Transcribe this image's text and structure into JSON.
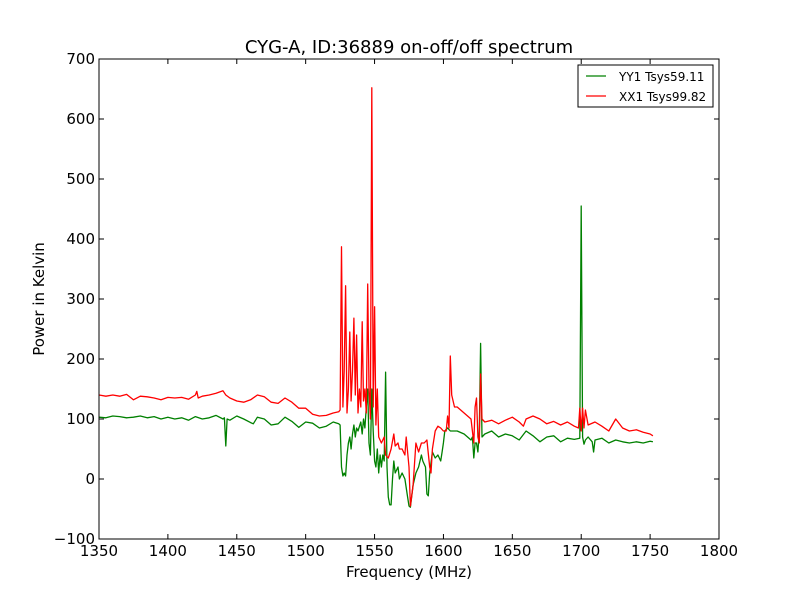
{
  "chart_data": {
    "type": "line",
    "title": "CYG-A, ID:36889 on-off/off spectrum",
    "xlabel": "Frequency (MHz)",
    "ylabel": "Power in Kelvin",
    "xlim": [
      1350,
      1800
    ],
    "ylim": [
      -100,
      700
    ],
    "xticks": [
      1350,
      1400,
      1450,
      1500,
      1550,
      1600,
      1650,
      1700,
      1750,
      1800
    ],
    "yticks": [
      -100,
      0,
      100,
      200,
      300,
      400,
      500,
      600,
      700
    ],
    "xtick_labels": [
      "1350",
      "1400",
      "1450",
      "1500",
      "1550",
      "1600",
      "1650",
      "1700",
      "1750",
      "1800"
    ],
    "ytick_labels": [
      "−100",
      "0",
      "100",
      "200",
      "300",
      "400",
      "500",
      "600",
      "700"
    ],
    "grid": false,
    "legend_position": "top-right",
    "series": [
      {
        "name": "YY1 Tsys59.11",
        "color": "#008000",
        "points": [
          [
            1350,
            103
          ],
          [
            1355,
            102
          ],
          [
            1360,
            105
          ],
          [
            1365,
            104
          ],
          [
            1370,
            102
          ],
          [
            1375,
            103
          ],
          [
            1380,
            105
          ],
          [
            1385,
            102
          ],
          [
            1390,
            104
          ],
          [
            1395,
            100
          ],
          [
            1400,
            103
          ],
          [
            1405,
            100
          ],
          [
            1410,
            102
          ],
          [
            1415,
            98
          ],
          [
            1420,
            104
          ],
          [
            1425,
            100
          ],
          [
            1430,
            102
          ],
          [
            1435,
            106
          ],
          [
            1440,
            100
          ],
          [
            1441,
            102
          ],
          [
            1442,
            55
          ],
          [
            1443,
            100
          ],
          [
            1445,
            98
          ],
          [
            1450,
            105
          ],
          [
            1455,
            100
          ],
          [
            1460,
            94
          ],
          [
            1462,
            92
          ],
          [
            1465,
            103
          ],
          [
            1470,
            100
          ],
          [
            1475,
            90
          ],
          [
            1480,
            92
          ],
          [
            1485,
            103
          ],
          [
            1490,
            96
          ],
          [
            1495,
            86
          ],
          [
            1500,
            95
          ],
          [
            1505,
            93
          ],
          [
            1510,
            85
          ],
          [
            1515,
            88
          ],
          [
            1520,
            95
          ],
          [
            1524,
            92
          ],
          [
            1525,
            90
          ],
          [
            1526,
            20
          ],
          [
            1527,
            5
          ],
          [
            1528,
            10
          ],
          [
            1529,
            5
          ],
          [
            1530,
            40
          ],
          [
            1531,
            60
          ],
          [
            1532,
            70
          ],
          [
            1533,
            50
          ],
          [
            1534,
            75
          ],
          [
            1535,
            90
          ],
          [
            1536,
            70
          ],
          [
            1537,
            85
          ],
          [
            1538,
            80
          ],
          [
            1540,
            95
          ],
          [
            1541,
            75
          ],
          [
            1542,
            100
          ],
          [
            1543,
            85
          ],
          [
            1544,
            120
          ],
          [
            1545,
            150
          ],
          [
            1546,
            60
          ],
          [
            1547,
            40
          ],
          [
            1548,
            150
          ],
          [
            1549,
            80
          ],
          [
            1550,
            30
          ],
          [
            1551,
            20
          ],
          [
            1552,
            50
          ],
          [
            1553,
            10
          ],
          [
            1554,
            40
          ],
          [
            1555,
            20
          ],
          [
            1556,
            40
          ],
          [
            1557,
            30
          ],
          [
            1558,
            178
          ],
          [
            1559,
            20
          ],
          [
            1560,
            -30
          ],
          [
            1561,
            -43
          ],
          [
            1562,
            -43
          ],
          [
            1563,
            0
          ],
          [
            1564,
            30
          ],
          [
            1565,
            10
          ],
          [
            1567,
            20
          ],
          [
            1568,
            0
          ],
          [
            1570,
            10
          ],
          [
            1572,
            0
          ],
          [
            1574,
            -30
          ],
          [
            1575,
            -45
          ],
          [
            1576,
            -47
          ],
          [
            1578,
            -10
          ],
          [
            1580,
            10
          ],
          [
            1582,
            20
          ],
          [
            1584,
            40
          ],
          [
            1585,
            30
          ],
          [
            1587,
            20
          ],
          [
            1588,
            -25
          ],
          [
            1589,
            -28
          ],
          [
            1590,
            10
          ],
          [
            1592,
            45
          ],
          [
            1594,
            35
          ],
          [
            1596,
            40
          ],
          [
            1598,
            30
          ],
          [
            1599,
            45
          ],
          [
            1600,
            60
          ],
          [
            1601,
            80
          ],
          [
            1603,
            85
          ],
          [
            1605,
            80
          ],
          [
            1610,
            80
          ],
          [
            1615,
            75
          ],
          [
            1620,
            65
          ],
          [
            1621,
            70
          ],
          [
            1622,
            35
          ],
          [
            1623,
            60
          ],
          [
            1624,
            60
          ],
          [
            1625,
            45
          ],
          [
            1626,
            80
          ],
          [
            1627,
            226
          ],
          [
            1628,
            70
          ],
          [
            1630,
            75
          ],
          [
            1635,
            80
          ],
          [
            1640,
            70
          ],
          [
            1645,
            75
          ],
          [
            1650,
            72
          ],
          [
            1655,
            65
          ],
          [
            1660,
            80
          ],
          [
            1665,
            72
          ],
          [
            1670,
            62
          ],
          [
            1675,
            70
          ],
          [
            1680,
            72
          ],
          [
            1685,
            62
          ],
          [
            1690,
            68
          ],
          [
            1695,
            66
          ],
          [
            1699,
            68
          ],
          [
            1700,
            455
          ],
          [
            1701,
            70
          ],
          [
            1702,
            58
          ],
          [
            1703,
            65
          ],
          [
            1705,
            70
          ],
          [
            1708,
            62
          ],
          [
            1709,
            45
          ],
          [
            1710,
            65
          ],
          [
            1715,
            68
          ],
          [
            1720,
            60
          ],
          [
            1725,
            65
          ],
          [
            1730,
            62
          ],
          [
            1735,
            60
          ],
          [
            1740,
            62
          ],
          [
            1745,
            60
          ],
          [
            1750,
            63
          ],
          [
            1752,
            62
          ]
        ]
      },
      {
        "name": "XX1 Tsys99.82",
        "color": "#ff0000",
        "points": [
          [
            1350,
            140
          ],
          [
            1355,
            138
          ],
          [
            1360,
            140
          ],
          [
            1365,
            138
          ],
          [
            1370,
            141
          ],
          [
            1375,
            132
          ],
          [
            1380,
            138
          ],
          [
            1385,
            137
          ],
          [
            1390,
            135
          ],
          [
            1395,
            132
          ],
          [
            1400,
            136
          ],
          [
            1405,
            135
          ],
          [
            1410,
            136
          ],
          [
            1415,
            133
          ],
          [
            1420,
            140
          ],
          [
            1421,
            146
          ],
          [
            1422,
            135
          ],
          [
            1425,
            138
          ],
          [
            1430,
            140
          ],
          [
            1435,
            143
          ],
          [
            1440,
            147
          ],
          [
            1442,
            140
          ],
          [
            1445,
            135
          ],
          [
            1450,
            130
          ],
          [
            1455,
            128
          ],
          [
            1460,
            132
          ],
          [
            1465,
            140
          ],
          [
            1470,
            137
          ],
          [
            1475,
            128
          ],
          [
            1480,
            126
          ],
          [
            1485,
            135
          ],
          [
            1490,
            128
          ],
          [
            1495,
            118
          ],
          [
            1500,
            118
          ],
          [
            1505,
            108
          ],
          [
            1510,
            105
          ],
          [
            1515,
            106
          ],
          [
            1520,
            110
          ],
          [
            1524,
            112
          ],
          [
            1525,
            115
          ],
          [
            1526,
            387
          ],
          [
            1527,
            120
          ],
          [
            1528,
            180
          ],
          [
            1529,
            322
          ],
          [
            1530,
            110
          ],
          [
            1531,
            150
          ],
          [
            1532,
            245
          ],
          [
            1533,
            130
          ],
          [
            1534,
            180
          ],
          [
            1535,
            268
          ],
          [
            1536,
            140
          ],
          [
            1537,
            240
          ],
          [
            1538,
            110
          ],
          [
            1539,
            150
          ],
          [
            1540,
            120
          ],
          [
            1541,
            262
          ],
          [
            1542,
            130
          ],
          [
            1543,
            150
          ],
          [
            1544,
            110
          ],
          [
            1545,
            325
          ],
          [
            1546,
            150
          ],
          [
            1547,
            100
          ],
          [
            1548,
            652
          ],
          [
            1549,
            120
          ],
          [
            1550,
            287
          ],
          [
            1551,
            90
          ],
          [
            1552,
            150
          ],
          [
            1553,
            70
          ],
          [
            1555,
            60
          ],
          [
            1557,
            70
          ],
          [
            1558,
            40
          ],
          [
            1560,
            35
          ],
          [
            1562,
            50
          ],
          [
            1564,
            75
          ],
          [
            1565,
            55
          ],
          [
            1567,
            60
          ],
          [
            1568,
            50
          ],
          [
            1570,
            50
          ],
          [
            1572,
            40
          ],
          [
            1573,
            70
          ],
          [
            1575,
            20
          ],
          [
            1576,
            -45
          ],
          [
            1578,
            -10
          ],
          [
            1580,
            60
          ],
          [
            1582,
            45
          ],
          [
            1584,
            60
          ],
          [
            1586,
            60
          ],
          [
            1588,
            65
          ],
          [
            1590,
            20
          ],
          [
            1591,
            10
          ],
          [
            1592,
            50
          ],
          [
            1594,
            80
          ],
          [
            1596,
            88
          ],
          [
            1598,
            85
          ],
          [
            1600,
            80
          ],
          [
            1602,
            80
          ],
          [
            1603,
            105
          ],
          [
            1604,
            85
          ],
          [
            1605,
            205
          ],
          [
            1606,
            140
          ],
          [
            1608,
            120
          ],
          [
            1610,
            120
          ],
          [
            1615,
            110
          ],
          [
            1620,
            100
          ],
          [
            1622,
            60
          ],
          [
            1623,
            120
          ],
          [
            1624,
            135
          ],
          [
            1625,
            70
          ],
          [
            1626,
            60
          ],
          [
            1627,
            175
          ],
          [
            1628,
            100
          ],
          [
            1630,
            95
          ],
          [
            1635,
            98
          ],
          [
            1640,
            92
          ],
          [
            1645,
            98
          ],
          [
            1650,
            103
          ],
          [
            1655,
            95
          ],
          [
            1658,
            88
          ],
          [
            1660,
            100
          ],
          [
            1665,
            105
          ],
          [
            1670,
            100
          ],
          [
            1675,
            92
          ],
          [
            1680,
            96
          ],
          [
            1685,
            90
          ],
          [
            1690,
            95
          ],
          [
            1695,
            88
          ],
          [
            1698,
            85
          ],
          [
            1699,
            118
          ],
          [
            1700,
            80
          ],
          [
            1701,
            118
          ],
          [
            1702,
            85
          ],
          [
            1703,
            115
          ],
          [
            1705,
            90
          ],
          [
            1710,
            95
          ],
          [
            1715,
            88
          ],
          [
            1720,
            80
          ],
          [
            1725,
            100
          ],
          [
            1730,
            85
          ],
          [
            1735,
            80
          ],
          [
            1740,
            82
          ],
          [
            1745,
            78
          ],
          [
            1750,
            75
          ],
          [
            1752,
            72
          ]
        ]
      }
    ]
  }
}
